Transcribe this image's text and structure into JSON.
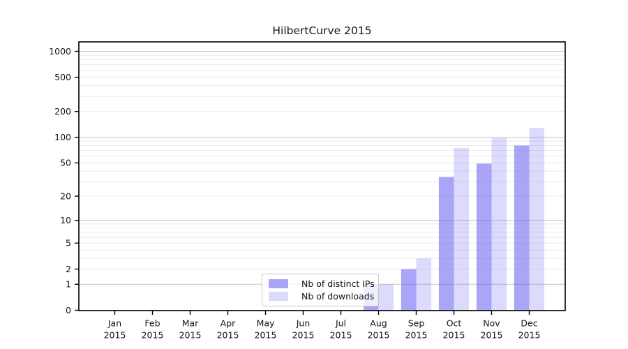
{
  "chart_data": {
    "type": "bar",
    "title": "HilbertCurve 2015",
    "categories": [
      "Jan",
      "Feb",
      "Mar",
      "Apr",
      "May",
      "Jun",
      "Jul",
      "Aug",
      "Sep",
      "Oct",
      "Nov",
      "Dec"
    ],
    "category_year": "2015",
    "series": [
      {
        "name": "Nb of distinct IPs",
        "color_rgb": "99,91,240",
        "alpha": 0.55,
        "solid_hex": "#a9a5f3",
        "values": [
          0,
          0,
          0,
          0,
          0,
          0,
          0,
          1,
          2,
          34,
          49,
          80
        ]
      },
      {
        "name": "Nb of downloads",
        "color_rgb": "99,91,240",
        "alpha": 0.22,
        "solid_hex": "#dcdaf9",
        "values": [
          0,
          0,
          0,
          0,
          0,
          0,
          0,
          1,
          3,
          75,
          98,
          129
        ]
      }
    ],
    "y_scale": "log1p (0, then log-spaced)",
    "y_ticks": [
      0,
      1,
      2,
      5,
      10,
      20,
      50,
      100,
      200,
      500,
      1000
    ],
    "ylim": [
      0,
      1300
    ],
    "grid": "horizontal major + minor log gridlines",
    "legend_position": "inside plot, bottom center-left"
  },
  "colors": {
    "background": "#ffffff",
    "axis": "#000000",
    "text": "#141414",
    "grid_major": "#c3c3c3",
    "grid_minor": "#ebebeb",
    "legend_border": "#c8c8c8"
  }
}
